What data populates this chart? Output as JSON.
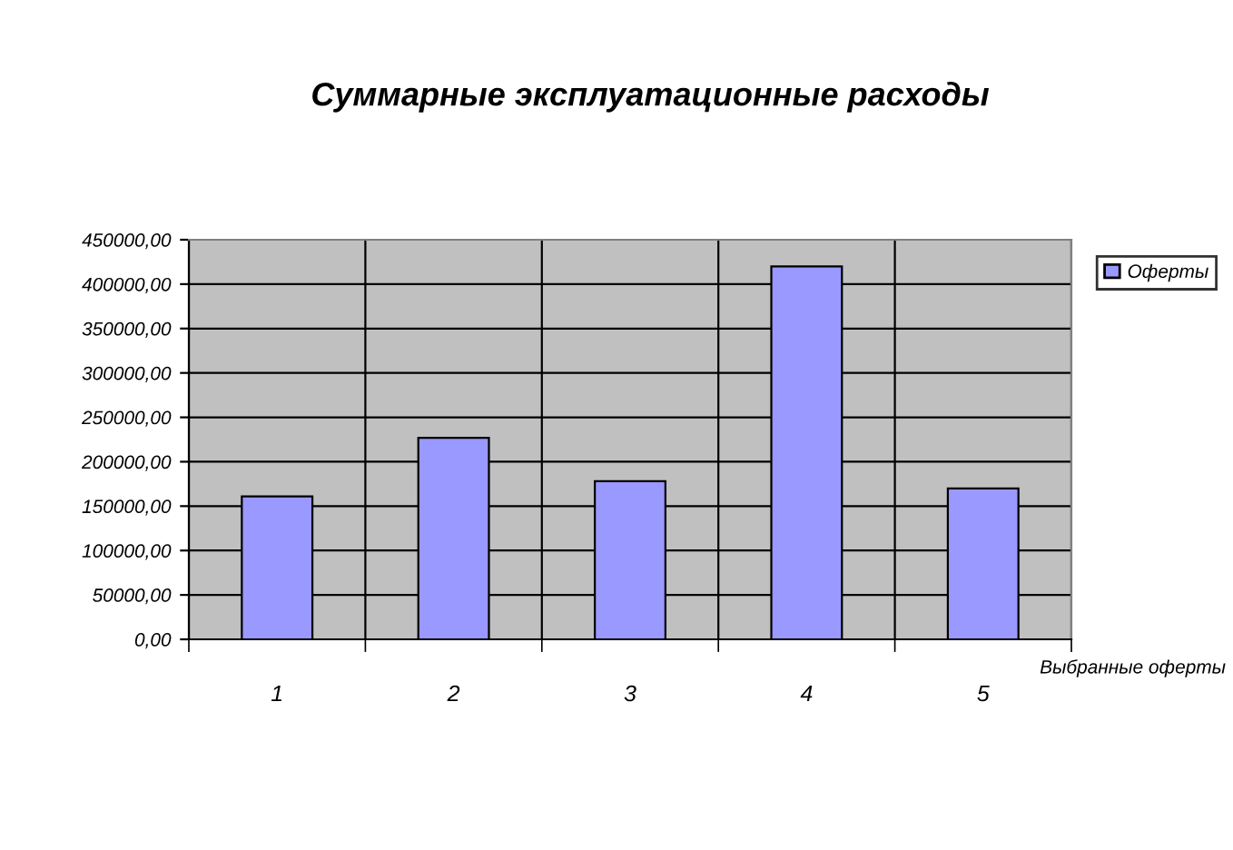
{
  "chart_data": {
    "type": "bar",
    "title": "Суммарные эксплуатационные расходы",
    "xlabel": "Выбранные оферты",
    "categories": [
      "1",
      "2",
      "3",
      "4",
      "5"
    ],
    "series": [
      {
        "name": "Оферты",
        "color": "#9999ff",
        "values": [
          161000,
          227000,
          178000,
          420000,
          170000
        ]
      }
    ],
    "ylim": [
      0,
      450000
    ],
    "yticks": [
      {
        "value": 0,
        "label": "0,00"
      },
      {
        "value": 50000,
        "label": "50000,00"
      },
      {
        "value": 100000,
        "label": "100000,00"
      },
      {
        "value": 150000,
        "label": "150000,00"
      },
      {
        "value": 200000,
        "label": "200000,00"
      },
      {
        "value": 250000,
        "label": "250000,00"
      },
      {
        "value": 300000,
        "label": "300000,00"
      },
      {
        "value": 350000,
        "label": "350000,00"
      },
      {
        "value": 400000,
        "label": "400000,00"
      },
      {
        "value": 450000,
        "label": "450000,00"
      }
    ],
    "grid": true,
    "legend": "top right"
  }
}
